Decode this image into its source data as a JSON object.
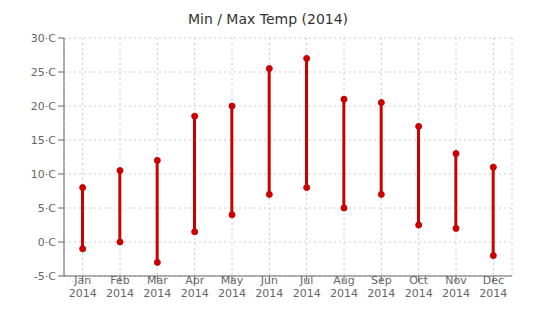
{
  "chart_data": {
    "type": "range",
    "title": "Min / Max Temp (2014)",
    "categories": [
      "Jan\n2014",
      "Feb\n2014",
      "Mar\n2014",
      "Apr\n2014",
      "May\n2014",
      "Jun\n2014",
      "Jul\n2014",
      "Aug\n2014",
      "Sep\n2014",
      "Oct\n2014",
      "Nov\n2014",
      "Dec\n2014"
    ],
    "low": [
      -1,
      0,
      -3,
      1.5,
      4,
      7,
      8,
      5,
      7,
      2.5,
      2,
      -2
    ],
    "high": [
      8,
      10.5,
      12,
      18.5,
      20,
      25.5,
      27,
      21,
      20.5,
      17,
      13,
      11
    ],
    "color": "#cc0000",
    "marker": "circle",
    "ylim": [
      -5,
      30
    ],
    "yticks": [
      {
        "value": -5,
        "label": "-5·C"
      },
      {
        "value": 0,
        "label": "0·C"
      },
      {
        "value": 5,
        "label": "5·C"
      },
      {
        "value": 10,
        "label": "10·C"
      },
      {
        "value": 15,
        "label": "15·C"
      },
      {
        "value": 20,
        "label": "20·C"
      },
      {
        "value": 25,
        "label": "25·C"
      },
      {
        "value": 30,
        "label": "30·C"
      }
    ],
    "grid": true
  }
}
